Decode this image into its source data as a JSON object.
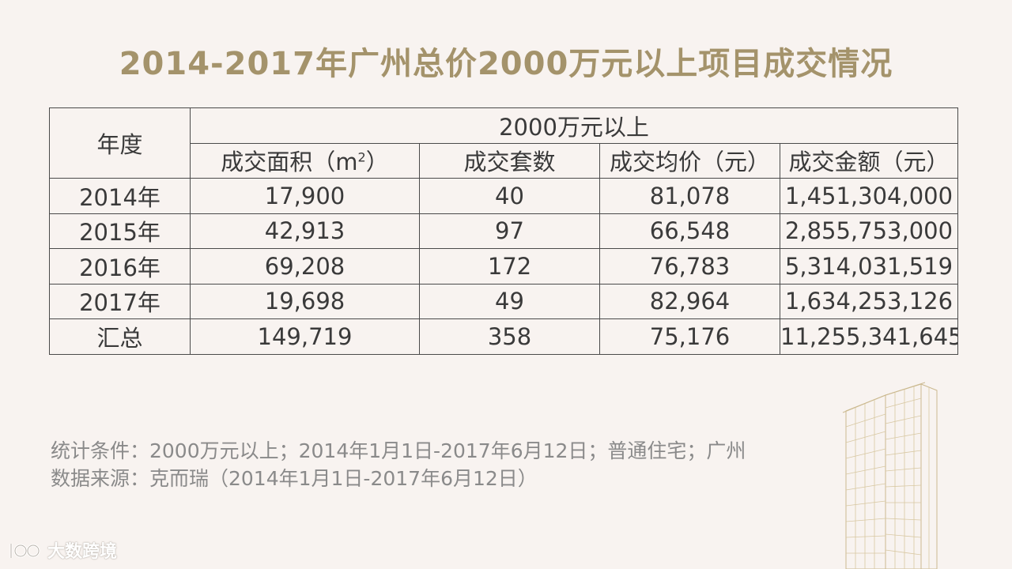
{
  "title": "2014-2017年广州总价2000万元以上项目成交情况",
  "table": {
    "year_header": "年度",
    "group_header": "2000万元以上",
    "columns": [
      "成交面积（m",
      "成交套数",
      "成交均价（元）",
      "成交金额（元）"
    ],
    "area_unit_sup": "2",
    "area_unit_close": "）",
    "rows": [
      {
        "year": "2014年",
        "area": "17,900",
        "count": "40",
        "avg_price": "81,078",
        "amount": "1,451,304,000"
      },
      {
        "year": "2015年",
        "area": "42,913",
        "count": "97",
        "avg_price": "66,548",
        "amount": "2,855,753,000"
      },
      {
        "year": "2016年",
        "area": "69,208",
        "count": "172",
        "avg_price": "76,783",
        "amount": "5,314,031,519"
      },
      {
        "year": "2017年",
        "area": "19,698",
        "count": "49",
        "avg_price": "82,964",
        "amount": "1,634,253,126"
      },
      {
        "year": "汇总",
        "area": "149,719",
        "count": "358",
        "avg_price": "75,176",
        "amount": "11,255,341,645"
      }
    ]
  },
  "notes": {
    "conditions": "统计条件：2000万元以上；2014年1月1日-2017年6月12日；普通住宅；广州",
    "source": "数据来源：克而瑞（2014年1月1日-2017年6月12日）"
  },
  "watermark": {
    "text": "大数跨境",
    "icon": "logo-icon"
  },
  "colors": {
    "background": "#f8f3f0",
    "title": "#a4936b",
    "border": "#4a4a4a",
    "notes": "#8a8a8a"
  }
}
